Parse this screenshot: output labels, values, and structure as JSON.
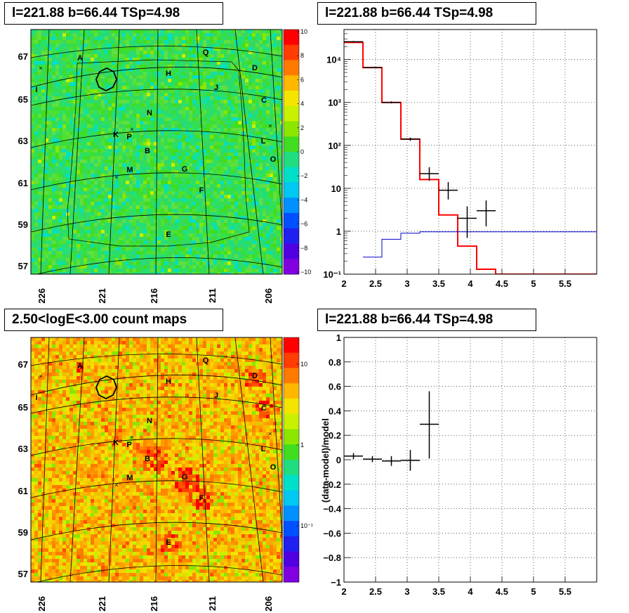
{
  "panels": {
    "tl_title": "l=221.88 b=66.44 TSp=4.98",
    "tr_title": "l=221.88 b=66.44 TSp=4.98",
    "bl_title": "2.50<logE<3.00 count maps",
    "br_title": "l=221.88 b=66.44 TSp=4.98"
  },
  "map_axes": {
    "y_ticks": [
      "67",
      "65",
      "63",
      "61",
      "59",
      "57"
    ],
    "x_ticks": [
      "226",
      "221",
      "216",
      "211",
      "206"
    ],
    "source_labels": [
      "A",
      "H",
      "Q",
      "D",
      "J",
      "C",
      "I",
      "N",
      "K",
      "P",
      "B",
      "L",
      "O",
      "M",
      "G",
      "F",
      "E"
    ]
  },
  "colorbar_top": {
    "ticks": [
      "10",
      "8",
      "6",
      "4",
      "2",
      "0",
      "−2",
      "−4",
      "−6",
      "−8",
      "−10"
    ],
    "colors": [
      "#ff0000",
      "#ff3d00",
      "#ff7a00",
      "#ffb800",
      "#f5e400",
      "#c8f000",
      "#8ce600",
      "#40dd20",
      "#20dd80",
      "#00e0c8",
      "#00c8f0",
      "#0090ff",
      "#0050ff",
      "#2020f0",
      "#5000e0",
      "#8000e0"
    ]
  },
  "colorbar_bottom": {
    "ticks": [
      "10",
      "1",
      "10⁻¹"
    ],
    "colors": [
      "#ff0000",
      "#ff3d00",
      "#ff7a00",
      "#ffb800",
      "#f5e400",
      "#c8f000",
      "#8ce600",
      "#40dd20",
      "#20dd80",
      "#00e0c8",
      "#00c8f0",
      "#0090ff",
      "#0050ff",
      "#2020f0",
      "#5000e0",
      "#8000e0"
    ]
  },
  "chart_data": [
    {
      "type": "line",
      "panel": "spectrum",
      "title": "l=221.88 b=66.44 TSp=4.98",
      "xlim": [
        2,
        6
      ],
      "ylim": [
        0.1,
        50000
      ],
      "yscale": "log",
      "x_ticks": [
        "2",
        "2.5",
        "3",
        "3.5",
        "4",
        "4.5",
        "5",
        "5.5"
      ],
      "y_ticks": [
        "10⁻¹",
        "1",
        "10",
        "10²",
        "10³",
        "10⁴"
      ],
      "grid": true,
      "series": [
        {
          "color": "#ff0000",
          "style": "step",
          "edges": [
            2.0,
            2.3,
            2.6,
            2.9,
            3.2,
            3.5,
            3.8,
            4.1,
            4.4,
            6.0
          ],
          "values": [
            25000,
            6500,
            1000,
            140,
            16,
            2.4,
            0.45,
            0.13,
            0.1
          ]
        },
        {
          "color": "#0000cc",
          "style": "step",
          "edges": [
            2.3,
            2.6,
            2.9,
            3.2,
            6.0
          ],
          "values": [
            0.25,
            0.65,
            0.9,
            0.97
          ]
        },
        {
          "color": "#000000",
          "style": "errorbar",
          "x": [
            2.15,
            2.45,
            2.75,
            3.05,
            3.35,
            3.65,
            3.95,
            4.25
          ],
          "xerr": [
            0.15,
            0.15,
            0.15,
            0.15,
            0.15,
            0.15,
            0.15,
            0.15
          ],
          "y": [
            26000,
            6500,
            1000,
            140,
            22,
            9,
            2,
            3
          ],
          "ylo": [
            25000,
            6300,
            950,
            128,
            15,
            5.5,
            0.7,
            1.3
          ],
          "yhi": [
            27000,
            6700,
            1060,
            152,
            31,
            14,
            3.8,
            5.2
          ]
        }
      ]
    },
    {
      "type": "scatter",
      "panel": "residual",
      "title": "l=221.88 b=66.44 TSp=4.98",
      "ylabel": "(data-model)/model",
      "xlim": [
        2,
        6
      ],
      "ylim": [
        -1,
        1
      ],
      "x_ticks": [
        "2",
        "2.5",
        "3",
        "3.5",
        "4",
        "4.5",
        "5",
        "5.5"
      ],
      "y_ticks": [
        "−1",
        "−0.8",
        "−0.6",
        "−0.4",
        "−0.2",
        "0",
        "0.2",
        "0.4",
        "0.6",
        "0.8",
        "1"
      ],
      "grid": true,
      "series": [
        {
          "color": "#000000",
          "x": [
            2.15,
            2.45,
            2.75,
            3.05,
            3.35
          ],
          "xerr": [
            0.15,
            0.15,
            0.15,
            0.15,
            0.15
          ],
          "y": [
            0.03,
            0.005,
            -0.01,
            -0.005,
            0.29
          ],
          "ylo": [
            0.005,
            -0.02,
            -0.05,
            -0.09,
            0.01
          ],
          "yhi": [
            0.055,
            0.03,
            0.03,
            0.08,
            0.56
          ]
        }
      ]
    }
  ]
}
